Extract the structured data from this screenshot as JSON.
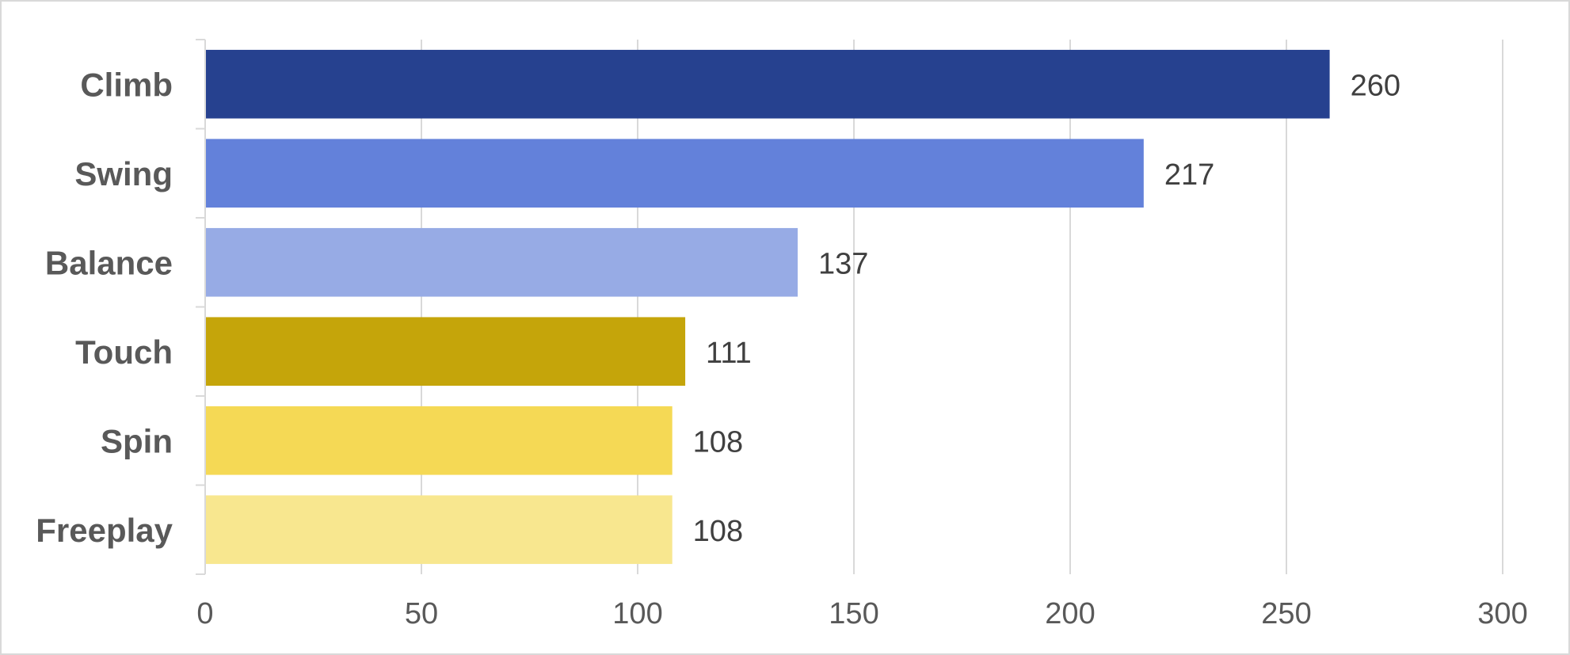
{
  "chart_data": {
    "type": "bar",
    "orientation": "horizontal",
    "categories": [
      "Climb",
      "Swing",
      "Balance",
      "Touch",
      "Spin",
      "Freeplay"
    ],
    "values": [
      260,
      217,
      137,
      111,
      108,
      108
    ],
    "colors": [
      "#26418f",
      "#6381da",
      "#97abe5",
      "#c5a50a",
      "#f5d955",
      "#f8e78f"
    ],
    "xlim": [
      0,
      300
    ],
    "xticks": [
      0,
      50,
      100,
      150,
      200,
      250,
      300
    ],
    "data_labels": [
      "260",
      "217",
      "137",
      "111",
      "108",
      "108"
    ],
    "grid": true,
    "legend": "none"
  }
}
